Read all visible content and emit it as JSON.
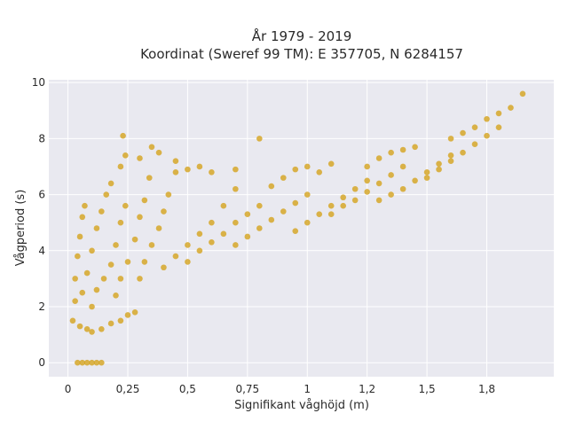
{
  "chart_data": {
    "type": "scatter",
    "title": [
      "År 1979 - 2019",
      "Koordinat (Sweref 99 TM): E 357705, N 6284157"
    ],
    "xlabel": "Signifikant våghöjd (m)",
    "ylabel": "Vågperiod (s)",
    "xlim": [
      -0.08,
      2.03
    ],
    "ylim": [
      -0.5,
      10.1
    ],
    "grid": true,
    "legend": "none",
    "colors": {
      "point": "#D4A21D",
      "plot_bg": "#E9E9F0",
      "grid": "#FFFFFF"
    },
    "x_ticks": [
      {
        "value": 0,
        "label": "0"
      },
      {
        "value": 0.25,
        "label": "0,25"
      },
      {
        "value": 0.5,
        "label": "0,5"
      },
      {
        "value": 0.75,
        "label": "0,75"
      },
      {
        "value": 1.0,
        "label": "1"
      },
      {
        "value": 1.25,
        "label": "1,2"
      },
      {
        "value": 1.5,
        "label": "1,5"
      },
      {
        "value": 1.75,
        "label": "1,8"
      }
    ],
    "y_ticks": [
      {
        "value": 0,
        "label": "0"
      },
      {
        "value": 2,
        "label": "2"
      },
      {
        "value": 4,
        "label": "4"
      },
      {
        "value": 6,
        "label": "6"
      },
      {
        "value": 8,
        "label": "8"
      },
      {
        "value": 10,
        "label": "10"
      }
    ],
    "series": [
      {
        "values_xy": [
          [
            0.04,
            0
          ],
          [
            0.06,
            0
          ],
          [
            0.08,
            0
          ],
          [
            0.1,
            0
          ],
          [
            0.12,
            0
          ],
          [
            0.14,
            0
          ],
          [
            0.02,
            1.5
          ],
          [
            0.03,
            2.2
          ],
          [
            0.03,
            3.0
          ],
          [
            0.04,
            3.8
          ],
          [
            0.05,
            4.5
          ],
          [
            0.06,
            5.2
          ],
          [
            0.07,
            5.6
          ],
          [
            0.05,
            1.3
          ],
          [
            0.08,
            1.2
          ],
          [
            0.1,
            1.1
          ],
          [
            0.14,
            1.2
          ],
          [
            0.18,
            1.4
          ],
          [
            0.22,
            1.5
          ],
          [
            0.25,
            1.7
          ],
          [
            0.28,
            1.8
          ],
          [
            0.06,
            2.5
          ],
          [
            0.08,
            3.2
          ],
          [
            0.1,
            4.0
          ],
          [
            0.12,
            4.8
          ],
          [
            0.14,
            5.4
          ],
          [
            0.16,
            6.0
          ],
          [
            0.18,
            6.4
          ],
          [
            0.1,
            2.0
          ],
          [
            0.12,
            2.6
          ],
          [
            0.15,
            3.0
          ],
          [
            0.18,
            3.5
          ],
          [
            0.2,
            4.2
          ],
          [
            0.22,
            5.0
          ],
          [
            0.24,
            5.6
          ],
          [
            0.2,
            2.4
          ],
          [
            0.22,
            3.0
          ],
          [
            0.25,
            3.6
          ],
          [
            0.28,
            4.4
          ],
          [
            0.3,
            5.2
          ],
          [
            0.32,
            5.8
          ],
          [
            0.34,
            6.6
          ],
          [
            0.22,
            7.0
          ],
          [
            0.24,
            7.4
          ],
          [
            0.23,
            8.1
          ],
          [
            0.3,
            7.3
          ],
          [
            0.35,
            7.7
          ],
          [
            0.38,
            7.5
          ],
          [
            0.3,
            3.0
          ],
          [
            0.32,
            3.6
          ],
          [
            0.35,
            4.2
          ],
          [
            0.38,
            4.8
          ],
          [
            0.4,
            5.4
          ],
          [
            0.42,
            6.0
          ],
          [
            0.45,
            6.8
          ],
          [
            0.4,
            3.4
          ],
          [
            0.45,
            3.8
          ],
          [
            0.5,
            4.2
          ],
          [
            0.55,
            4.6
          ],
          [
            0.6,
            5.0
          ],
          [
            0.65,
            5.6
          ],
          [
            0.7,
            6.2
          ],
          [
            0.45,
            7.2
          ],
          [
            0.5,
            6.9
          ],
          [
            0.55,
            7.0
          ],
          [
            0.6,
            6.8
          ],
          [
            0.7,
            6.9
          ],
          [
            0.8,
            8.0
          ],
          [
            0.5,
            3.6
          ],
          [
            0.55,
            4.0
          ],
          [
            0.6,
            4.3
          ],
          [
            0.65,
            4.6
          ],
          [
            0.7,
            5.0
          ],
          [
            0.75,
            5.3
          ],
          [
            0.8,
            5.6
          ],
          [
            0.7,
            4.2
          ],
          [
            0.75,
            4.5
          ],
          [
            0.8,
            4.8
          ],
          [
            0.85,
            5.1
          ],
          [
            0.9,
            5.4
          ],
          [
            0.95,
            5.7
          ],
          [
            1.0,
            6.0
          ],
          [
            0.85,
            6.3
          ],
          [
            0.9,
            6.6
          ],
          [
            0.95,
            6.9
          ],
          [
            1.0,
            7.0
          ],
          [
            1.05,
            6.8
          ],
          [
            1.1,
            7.1
          ],
          [
            0.95,
            4.7
          ],
          [
            1.0,
            5.0
          ],
          [
            1.05,
            5.3
          ],
          [
            1.1,
            5.6
          ],
          [
            1.15,
            5.9
          ],
          [
            1.2,
            6.2
          ],
          [
            1.25,
            6.5
          ],
          [
            1.1,
            5.3
          ],
          [
            1.15,
            5.6
          ],
          [
            1.2,
            5.8
          ],
          [
            1.25,
            6.1
          ],
          [
            1.3,
            6.4
          ],
          [
            1.35,
            6.7
          ],
          [
            1.4,
            7.0
          ],
          [
            1.25,
            7.0
          ],
          [
            1.3,
            7.3
          ],
          [
            1.35,
            7.5
          ],
          [
            1.4,
            7.6
          ],
          [
            1.45,
            7.7
          ],
          [
            1.3,
            5.8
          ],
          [
            1.35,
            6.0
          ],
          [
            1.4,
            6.2
          ],
          [
            1.45,
            6.5
          ],
          [
            1.5,
            6.8
          ],
          [
            1.55,
            7.1
          ],
          [
            1.6,
            7.4
          ],
          [
            1.5,
            6.6
          ],
          [
            1.55,
            6.9
          ],
          [
            1.6,
            7.2
          ],
          [
            1.65,
            7.5
          ],
          [
            1.7,
            7.8
          ],
          [
            1.75,
            8.1
          ],
          [
            1.8,
            8.4
          ],
          [
            1.6,
            8.0
          ],
          [
            1.65,
            8.2
          ],
          [
            1.7,
            8.4
          ],
          [
            1.75,
            8.7
          ],
          [
            1.8,
            8.9
          ],
          [
            1.85,
            9.1
          ],
          [
            1.9,
            9.6
          ]
        ]
      }
    ]
  }
}
